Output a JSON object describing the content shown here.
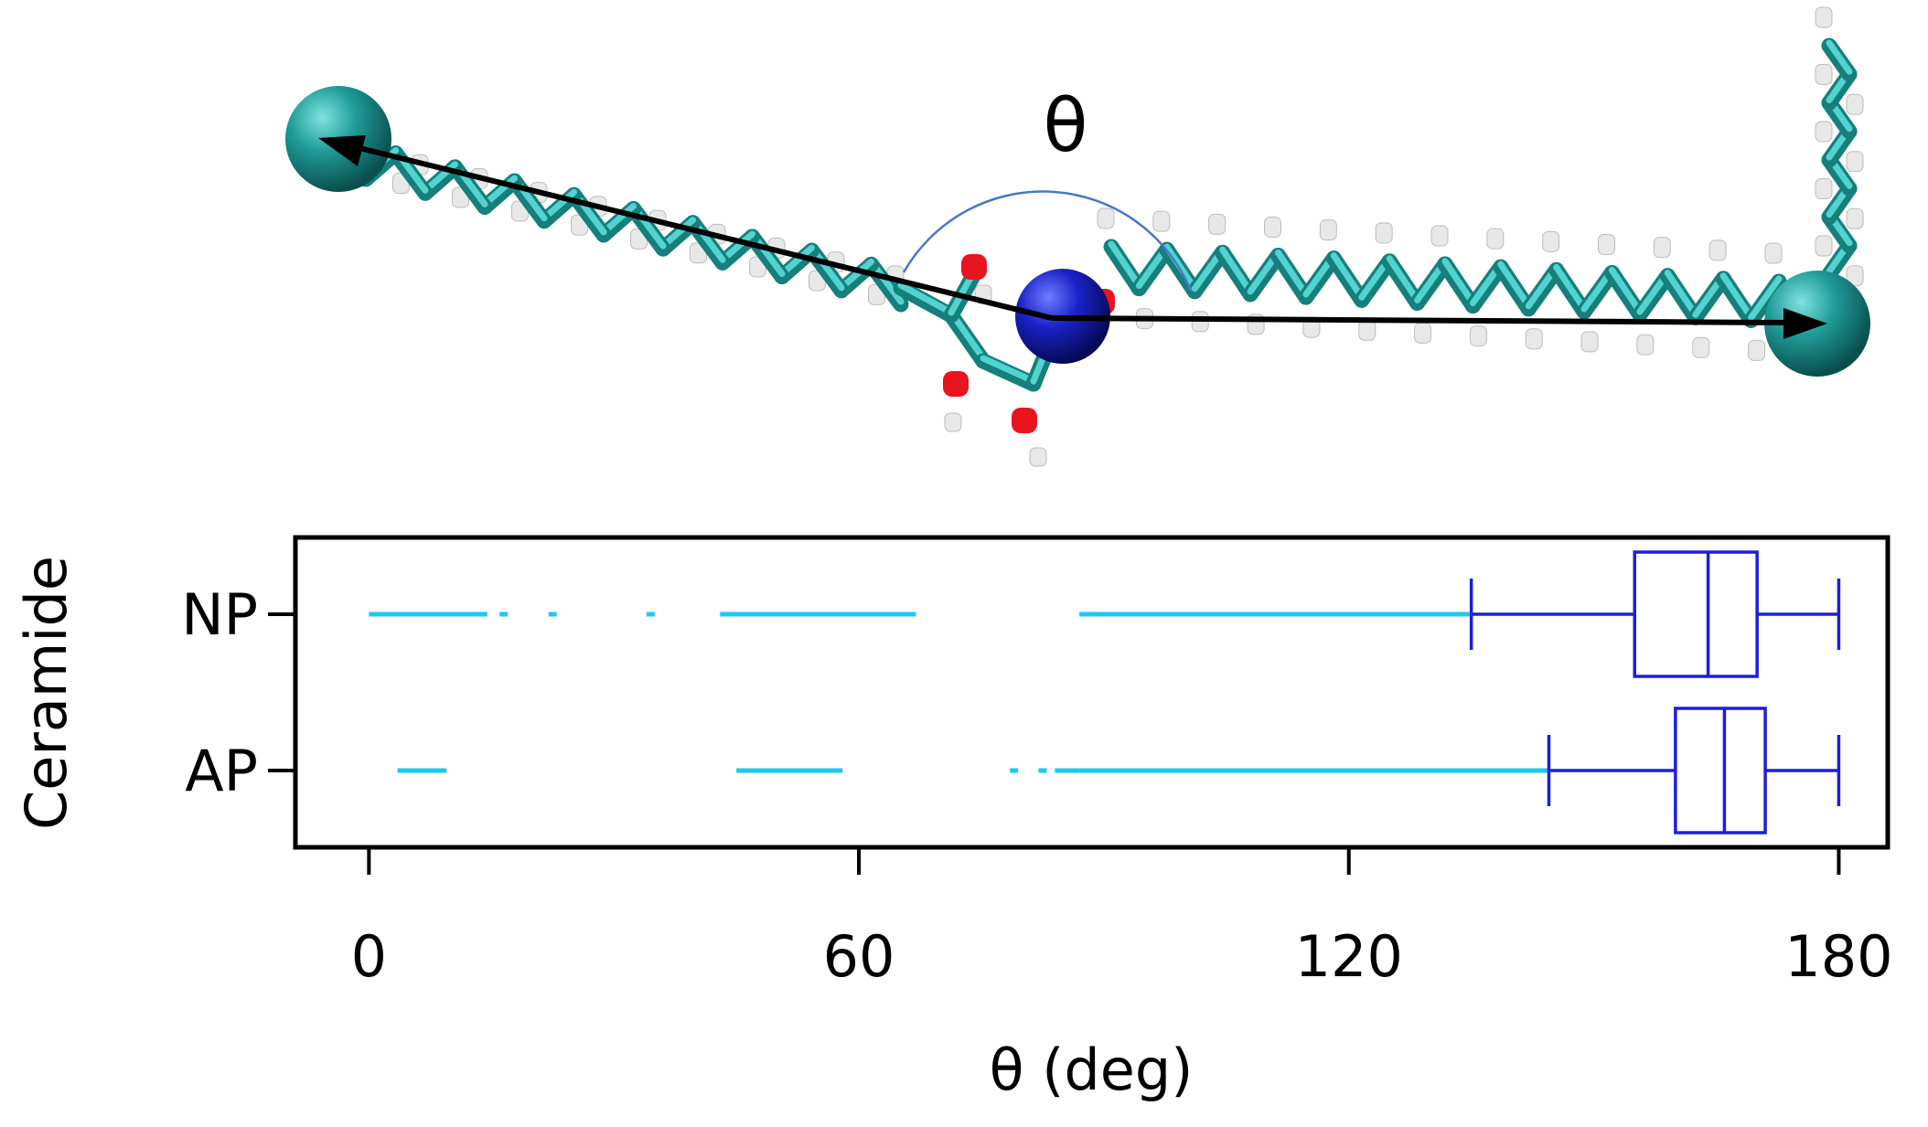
{
  "molecule": {
    "angle_symbol": "θ",
    "colors": {
      "carbon": "#2aa7a4",
      "hydrogen": "#e8e8e8",
      "oxygen": "#e8141e",
      "nitrogen": "#1a22c8",
      "arrow": "#000000",
      "arc": "#4a78c8"
    }
  },
  "chart_data": {
    "type": "boxplot",
    "orientation": "horizontal",
    "xlabel": "θ (deg)",
    "ylabel": "Ceramide",
    "xlim": [
      -9,
      186
    ],
    "xticks": [
      0,
      60,
      120,
      180
    ],
    "grid": false,
    "categories": [
      "NP",
      "AP"
    ],
    "boxes": [
      {
        "category": "NP",
        "q1": 155,
        "median": 164,
        "q3": 170,
        "whisker_low": 135,
        "whisker_high": 180,
        "outlier_segments": [
          [
            0,
            14.5
          ],
          [
            16,
            17
          ],
          [
            22,
            23
          ],
          [
            34,
            35
          ],
          [
            43,
            67
          ],
          [
            87,
            135
          ]
        ]
      },
      {
        "category": "AP",
        "q1": 160,
        "median": 166,
        "q3": 171,
        "whisker_low": 144.5,
        "whisker_high": 180,
        "outlier_segments": [
          [
            3.5,
            9.5
          ],
          [
            45,
            58
          ],
          [
            78.5,
            79.5
          ],
          [
            82,
            83
          ],
          [
            84,
            87
          ],
          [
            87,
            144.5
          ]
        ]
      }
    ],
    "colors": {
      "box": "#1d1de0",
      "outliers": "#1fc8f0"
    }
  }
}
